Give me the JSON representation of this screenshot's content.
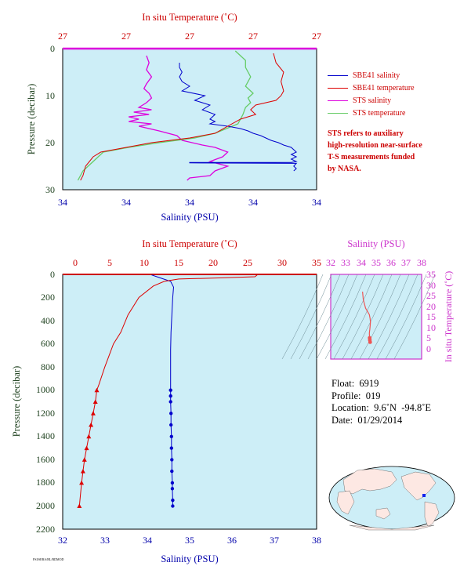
{
  "colors": {
    "plot_bg": "#cdeef7",
    "sbe_salinity": "#0000cc",
    "sbe_temperature": "#dd0000",
    "sts_salinity": "#dd00dd",
    "sts_temperature": "#66cc66",
    "salinity_axis": "#0000aa",
    "temperature_axis": "#cc0000",
    "pressure_axis": "#224422",
    "ts_axis": "#cc33cc",
    "ts_trace": "#ee5555"
  },
  "legend": {
    "items": [
      {
        "label": "SBE41 salinity",
        "color": "#0000cc"
      },
      {
        "label": "SBE41 temperature",
        "color": "#dd0000"
      },
      {
        "label": "STS salinity",
        "color": "#dd00dd"
      },
      {
        "label": "STS temperature",
        "color": "#66cc66"
      }
    ]
  },
  "note": {
    "lines": [
      "STS refers to auxiliary",
      "high-resolution near-surface",
      "T-S measurements funded",
      "by NASA."
    ]
  },
  "info": {
    "float": "Float:  6919",
    "profile": "Profile:  019",
    "location": "Location:  9.6˚N  -94.8˚E",
    "date": "Date:  01/29/2014"
  },
  "footer": "FSI/SEBA/BL/RDMOD",
  "chart_data": [
    {
      "type": "line",
      "xlabel_top": "In situ Temperature (˚C)",
      "xticks_top": [
        "27",
        "27",
        "27",
        "27",
        "27"
      ],
      "xlabel_bottom": "Salinity (PSU)",
      "xticks_bottom": [
        "34",
        "34",
        "34",
        "34",
        "34"
      ],
      "ylabel": "Pressure (decibar)",
      "ylim": [
        0,
        30
      ],
      "yticks": [
        "0",
        "10",
        "20",
        "30"
      ],
      "series": [
        {
          "name": "SBE41 salinity",
          "axis": "salinity",
          "x_range": [
            0,
            1
          ],
          "x": [
            0.46,
            0.46,
            0.47,
            0.46,
            0.47,
            0.5,
            0.47,
            0.56,
            0.52,
            0.58,
            0.55,
            0.6,
            0.58,
            0.6,
            0.58,
            0.65,
            0.7,
            0.73,
            0.75,
            0.78,
            0.8,
            0.82,
            0.85,
            0.87,
            0.9,
            0.92,
            0.9,
            0.92,
            0.9,
            0.92,
            0.9,
            0.5,
            0.5,
            0.92,
            0.91,
            0.92,
            0.91
          ],
          "y": [
            3,
            4,
            5,
            6,
            7,
            8,
            9,
            10,
            11,
            12,
            13,
            14,
            15,
            15.5,
            16,
            16.5,
            17,
            17.5,
            18,
            18.5,
            19,
            19.5,
            20,
            20.5,
            21,
            22,
            22.5,
            23,
            23.5,
            24,
            24.2,
            24.2,
            24.3,
            24.4,
            25,
            25.5,
            26
          ]
        },
        {
          "name": "SBE41 temperature",
          "axis": "temperature",
          "x_range": [
            0,
            1
          ],
          "x": [
            0.83,
            0.84,
            0.87,
            0.86,
            0.87,
            0.86,
            0.84,
            0.76,
            0.74,
            0.76,
            0.7,
            0.6,
            0.5,
            0.35,
            0.25,
            0.15,
            0.12,
            0.09,
            0.08,
            0.07
          ],
          "y": [
            1,
            3,
            5,
            7,
            9,
            10,
            11,
            12,
            13,
            14,
            15,
            18,
            19,
            20,
            21,
            22,
            23,
            25,
            27,
            28
          ]
        },
        {
          "name": "STS salinity",
          "axis": "salinity",
          "x_range": [
            0,
            1
          ],
          "x": [
            0.33,
            0.34,
            0.33,
            0.35,
            0.33,
            0.32,
            0.34,
            0.35,
            0.33,
            0.3,
            0.35,
            0.28,
            0.34,
            0.26,
            0.3,
            0.26,
            0.35,
            0.3,
            0.38,
            0.45,
            0.47,
            0.55,
            0.6,
            0.65,
            0.63,
            0.58,
            0.65,
            0.6,
            0.58,
            0.5,
            0.49
          ],
          "y": [
            1.5,
            3,
            4.5,
            6,
            7.5,
            8.5,
            9.5,
            10.5,
            11.5,
            12.5,
            13,
            13.5,
            14,
            14.5,
            15,
            15.5,
            16,
            16.5,
            17.5,
            18.5,
            19.5,
            20.5,
            21,
            22,
            23,
            24,
            25,
            26,
            27,
            27.5,
            28
          ]
        },
        {
          "name": "STS temperature",
          "axis": "temperature",
          "x_range": [
            0,
            1
          ],
          "x": [
            0.68,
            0.7,
            0.72,
            0.72,
            0.74,
            0.72,
            0.75,
            0.73,
            0.74,
            0.72,
            0.71,
            0.7,
            0.69,
            0.6,
            0.52,
            0.38,
            0.26,
            0.16,
            0.12,
            0.08,
            0.06
          ],
          "y": [
            0.5,
            1.5,
            2.5,
            4,
            6,
            8,
            9.5,
            10.5,
            11.5,
            12.5,
            14,
            15,
            16,
            18,
            19,
            20,
            21,
            22,
            24,
            26,
            28
          ]
        }
      ]
    },
    {
      "type": "line",
      "xlabel_top": "In situ Temperature (˚C)",
      "xlim_top": [
        0,
        35
      ],
      "xticks_top": [
        "0",
        "5",
        "10",
        "15",
        "20",
        "25",
        "30",
        "35"
      ],
      "xlabel_bottom": "Salinity (PSU)",
      "xlim_bottom": [
        32,
        38
      ],
      "xticks_bottom": [
        "32",
        "33",
        "34",
        "35",
        "36",
        "37",
        "38"
      ],
      "ylabel": "Pressure (decibar)",
      "ylim": [
        0,
        2200
      ],
      "yticks": [
        "0",
        "200",
        "400",
        "600",
        "800",
        "1000",
        "1200",
        "1400",
        "1600",
        "1800",
        "2000",
        "2200"
      ],
      "series": [
        {
          "name": "Salinity",
          "axis": "salinity",
          "marker": "circle",
          "x": [
            34.1,
            34.3,
            34.55,
            34.62,
            34.6,
            34.58,
            34.56,
            34.55,
            34.55,
            34.55,
            34.55,
            34.55,
            34.56,
            34.56,
            34.57,
            34.57,
            34.58,
            34.58,
            34.59,
            34.59,
            34.6,
            34.6
          ],
          "y": [
            5,
            30,
            60,
            110,
            200,
            350,
            500,
            650,
            800,
            1000,
            1050,
            1100,
            1200,
            1300,
            1400,
            1500,
            1600,
            1700,
            1800,
            1850,
            1950,
            2000
          ]
        },
        {
          "name": "Temperature",
          "axis": "temperature",
          "marker": "triangle",
          "x": [
            26.8,
            26.5,
            22.0,
            16.0,
            14.0,
            12.5,
            10.5,
            9.0,
            8.0,
            7.0,
            5.8,
            5.0,
            4.7,
            4.5,
            4.2,
            3.9,
            3.6,
            3.3,
            3.0,
            2.8,
            2.6,
            2.3
          ],
          "y": [
            5,
            20,
            30,
            40,
            60,
            100,
            200,
            350,
            500,
            600,
            800,
            950,
            1000,
            1100,
            1200,
            1300,
            1400,
            1500,
            1600,
            1700,
            1800,
            2000
          ]
        }
      ]
    },
    {
      "type": "scatter",
      "xlabel": "Salinity (PSU)",
      "xlim": [
        32,
        38
      ],
      "xticks": [
        "32",
        "33",
        "34",
        "35",
        "36",
        "37",
        "38"
      ],
      "ylabel": "In situ Temperature (˚C)",
      "ylim": [
        -5,
        35
      ],
      "yticks": [
        "0",
        "5",
        "10",
        "15",
        "20",
        "25",
        "30",
        "35"
      ],
      "x": [
        34.1,
        34.15,
        34.3,
        34.55,
        34.6,
        34.62,
        34.6,
        34.58,
        34.56,
        34.55,
        34.56,
        34.57,
        34.58,
        34.6
      ],
      "y": [
        26.8,
        23,
        19,
        16,
        14,
        12.5,
        10.5,
        9,
        8,
        7,
        5.8,
        5,
        4,
        3
      ]
    }
  ]
}
